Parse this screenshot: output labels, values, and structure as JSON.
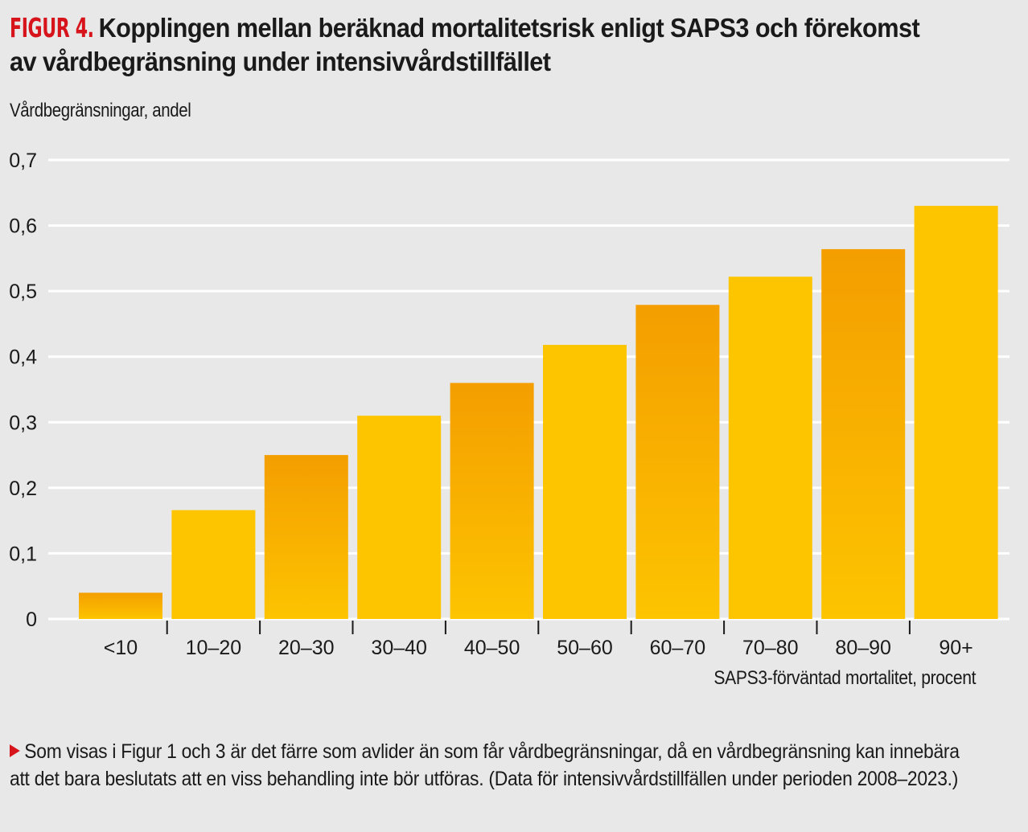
{
  "header": {
    "figure_label": "FIGUR 4.",
    "title": "Kopplingen mellan beräknad mortalitetsrisk enligt SAPS3 och förekomst av vårdbegränsning under intensivvårdstillfället"
  },
  "footnote": "Som visas i Figur 1 och 3 är det färre som avlider än som får vårdbegränsningar, då en vårdbegränsning kan innebära att det bara beslutats att en viss behandling inte bör utföras. (Data för intensivvårdstillfällen under perioden 2008–2023.)",
  "colors": {
    "background": "#e8e8e8",
    "accent_red": "#d7141c",
    "bar_yellow": "#fdc400",
    "bar_orange": "#f49e00",
    "gridline": "#ffffff"
  },
  "chart_data": {
    "type": "bar",
    "title": "Kopplingen mellan beräknad mortalitetsrisk enligt SAPS3 och förekomst av vårdbegränsning under intensivvårdstillfället",
    "xlabel": "SAPS3-förväntad mortalitet, procent",
    "ylabel": "Vårdbegränsningar, andel",
    "categories": [
      "<10",
      "10–20",
      "20–30",
      "30–40",
      "40–50",
      "50–60",
      "60–70",
      "70–80",
      "80–90",
      "90+"
    ],
    "values": [
      0.04,
      0.166,
      0.25,
      0.31,
      0.36,
      0.418,
      0.479,
      0.522,
      0.564,
      0.63
    ],
    "bar_style": [
      "orange-gradient",
      "yellow",
      "orange-gradient",
      "yellow",
      "orange-gradient",
      "yellow",
      "orange-gradient",
      "yellow",
      "orange-gradient",
      "yellow"
    ],
    "ylim": [
      0,
      0.7
    ],
    "yticks": [
      0,
      0.1,
      0.2,
      0.3,
      0.4,
      0.5,
      0.6,
      0.7
    ],
    "ytick_labels": [
      "0",
      "0,1",
      "0,2",
      "0,3",
      "0,4",
      "0,5",
      "0,6",
      "0,7"
    ],
    "grid": true,
    "legend": "none"
  }
}
